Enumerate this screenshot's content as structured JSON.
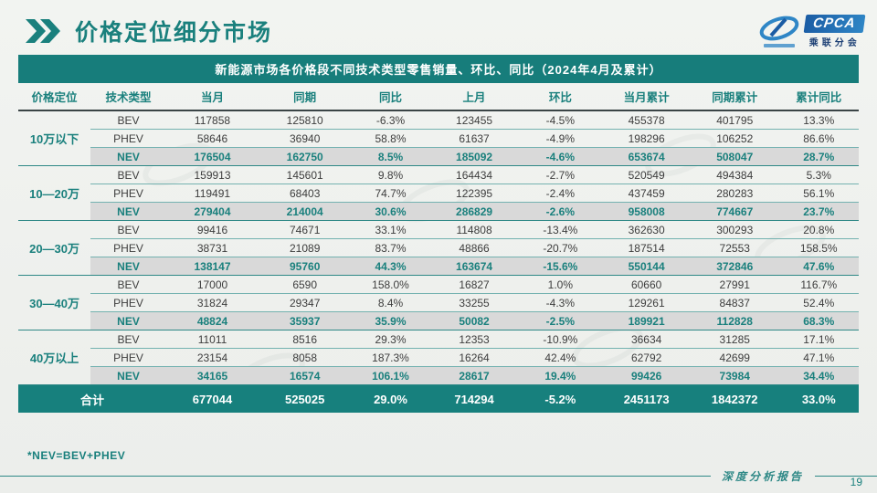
{
  "page": {
    "title": "价格定位细分市场",
    "footnote": "*NEV=BEV+PHEV",
    "footer_label": "深度分析报告",
    "page_number": "19"
  },
  "logo": {
    "brand": "CPCA",
    "brand_cn": "乘联分会",
    "icon": "swoosh-globe-icon"
  },
  "colors": {
    "teal_band": "#177d7b",
    "teal_text": "#1a807d",
    "nev_row_bg": "#d9d9d9",
    "segment_border": "#2e8886",
    "logo_blue": "#2f86c6"
  },
  "table": {
    "title": "新能源市场各价格段不同技术类型零售销量、环比、同比（2024年4月及累计）",
    "columns": [
      "价格定位",
      "技术类型",
      "当月",
      "同期",
      "同比",
      "上月",
      "环比",
      "当月累计",
      "同期累计",
      "累计同比"
    ],
    "segments": [
      {
        "label": "10万以下",
        "rows": [
          {
            "type": "BEV",
            "cells": [
              "117858",
              "125810",
              "-6.3%",
              "123455",
              "-4.5%",
              "455378",
              "401795",
              "13.3%"
            ]
          },
          {
            "type": "PHEV",
            "cells": [
              "58646",
              "36940",
              "58.8%",
              "61637",
              "-4.9%",
              "198296",
              "106252",
              "86.6%"
            ]
          },
          {
            "type": "NEV",
            "cells": [
              "176504",
              "162750",
              "8.5%",
              "185092",
              "-4.6%",
              "653674",
              "508047",
              "28.7%"
            ]
          }
        ]
      },
      {
        "label": "10—20万",
        "rows": [
          {
            "type": "BEV",
            "cells": [
              "159913",
              "145601",
              "9.8%",
              "164434",
              "-2.7%",
              "520549",
              "494384",
              "5.3%"
            ]
          },
          {
            "type": "PHEV",
            "cells": [
              "119491",
              "68403",
              "74.7%",
              "122395",
              "-2.4%",
              "437459",
              "280283",
              "56.1%"
            ]
          },
          {
            "type": "NEV",
            "cells": [
              "279404",
              "214004",
              "30.6%",
              "286829",
              "-2.6%",
              "958008",
              "774667",
              "23.7%"
            ]
          }
        ]
      },
      {
        "label": "20—30万",
        "rows": [
          {
            "type": "BEV",
            "cells": [
              "99416",
              "74671",
              "33.1%",
              "114808",
              "-13.4%",
              "362630",
              "300293",
              "20.8%"
            ]
          },
          {
            "type": "PHEV",
            "cells": [
              "38731",
              "21089",
              "83.7%",
              "48866",
              "-20.7%",
              "187514",
              "72553",
              "158.5%"
            ]
          },
          {
            "type": "NEV",
            "cells": [
              "138147",
              "95760",
              "44.3%",
              "163674",
              "-15.6%",
              "550144",
              "372846",
              "47.6%"
            ]
          }
        ]
      },
      {
        "label": "30—40万",
        "rows": [
          {
            "type": "BEV",
            "cells": [
              "17000",
              "6590",
              "158.0%",
              "16827",
              "1.0%",
              "60660",
              "27991",
              "116.7%"
            ]
          },
          {
            "type": "PHEV",
            "cells": [
              "31824",
              "29347",
              "8.4%",
              "33255",
              "-4.3%",
              "129261",
              "84837",
              "52.4%"
            ]
          },
          {
            "type": "NEV",
            "cells": [
              "48824",
              "35937",
              "35.9%",
              "50082",
              "-2.5%",
              "189921",
              "112828",
              "68.3%"
            ]
          }
        ]
      },
      {
        "label": "40万以上",
        "rows": [
          {
            "type": "BEV",
            "cells": [
              "11011",
              "8516",
              "29.3%",
              "12353",
              "-10.9%",
              "36634",
              "31285",
              "17.1%"
            ]
          },
          {
            "type": "PHEV",
            "cells": [
              "23154",
              "8058",
              "187.3%",
              "16264",
              "42.4%",
              "62792",
              "42699",
              "47.1%"
            ]
          },
          {
            "type": "NEV",
            "cells": [
              "34165",
              "16574",
              "106.1%",
              "28617",
              "19.4%",
              "99426",
              "73984",
              "34.4%"
            ]
          }
        ]
      }
    ],
    "total": {
      "label": "合计",
      "cells": [
        "677044",
        "525025",
        "29.0%",
        "714294",
        "-5.2%",
        "2451173",
        "1842372",
        "33.0%"
      ]
    }
  }
}
